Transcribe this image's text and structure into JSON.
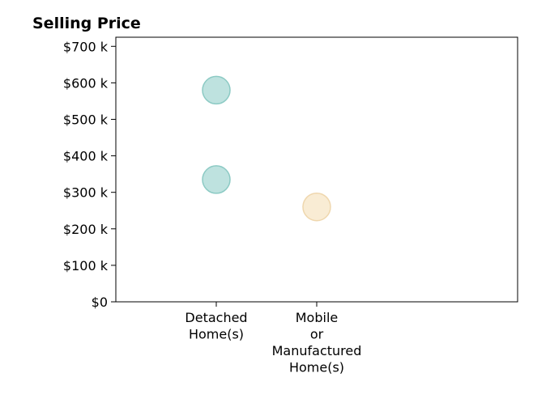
{
  "chart_data": {
    "type": "scatter",
    "title": "Selling Price",
    "xlabel": "",
    "ylabel": "",
    "categories": [
      [
        "Detached",
        "Home(s)"
      ],
      [
        "Mobile",
        "or",
        "Manufactured",
        "Home(s)"
      ]
    ],
    "yticks": [
      {
        "value": 0,
        "label": "$0"
      },
      {
        "value": 100,
        "label": "$100 k"
      },
      {
        "value": 200,
        "label": "$200 k"
      },
      {
        "value": 300,
        "label": "$300 k"
      },
      {
        "value": 400,
        "label": "$400 k"
      },
      {
        "value": 500,
        "label": "$500 k"
      },
      {
        "value": 600,
        "label": "$600 k"
      },
      {
        "value": 700,
        "label": "$700 k"
      }
    ],
    "ylim": [
      0,
      725
    ],
    "y_unit": "thousands of dollars",
    "grid": false,
    "legend": "none",
    "points": [
      {
        "category_index": 0,
        "y": 580,
        "color": "#a8d8d4"
      },
      {
        "category_index": 0,
        "y": 335,
        "color": "#a8d8d4"
      },
      {
        "category_index": 1,
        "y": 260,
        "color": "#f7e6c6"
      }
    ]
  }
}
